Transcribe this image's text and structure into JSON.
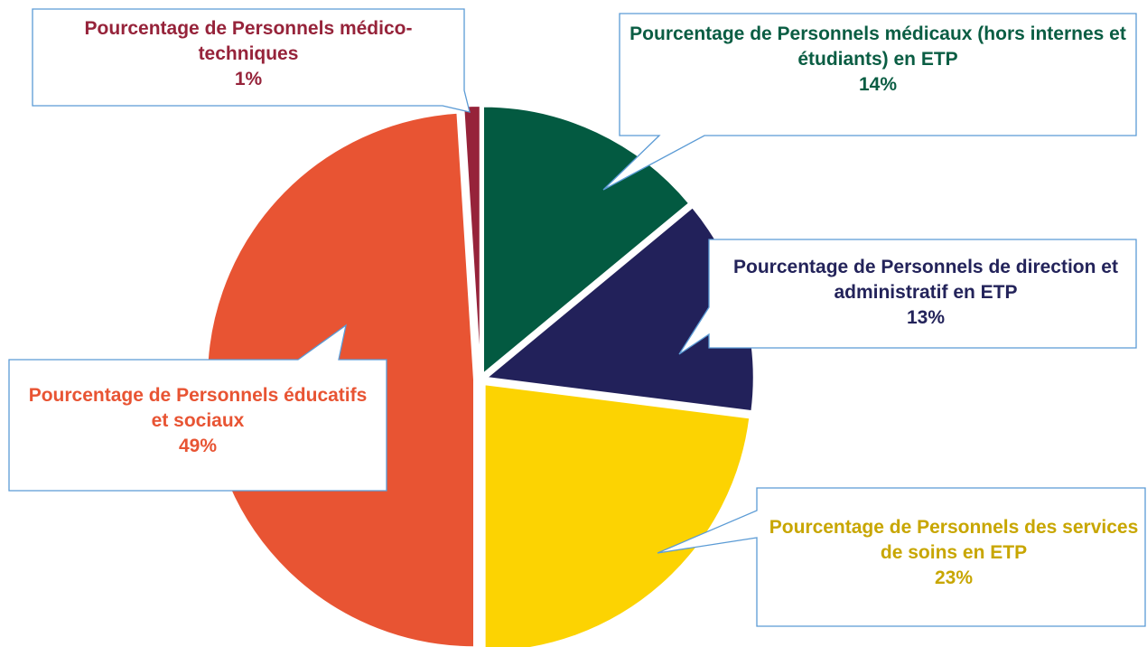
{
  "chart_data": {
    "type": "pie",
    "categories": [
      "Pourcentage de Personnels médicaux (hors internes et étudiants) en ETP",
      "Pourcentage de  Personnels de direction et administratif en ETP",
      "Pourcentage de Personnels des services de soins en ETP",
      "Pourcentage de Personnels éducatifs et sociaux",
      "Pourcentage de Personnels médico-techniques"
    ],
    "values": [
      14,
      13,
      23,
      49,
      1
    ],
    "value_labels": [
      "14%",
      "13%",
      "23%",
      "49%",
      "1%"
    ],
    "colors": [
      "#035a41",
      "#22215a",
      "#fcd302",
      "#e85433",
      "#96233a"
    ],
    "label_colors": [
      "#0a5d43",
      "#23235a",
      "#c8a600",
      "#e85433",
      "#96233a"
    ]
  }
}
